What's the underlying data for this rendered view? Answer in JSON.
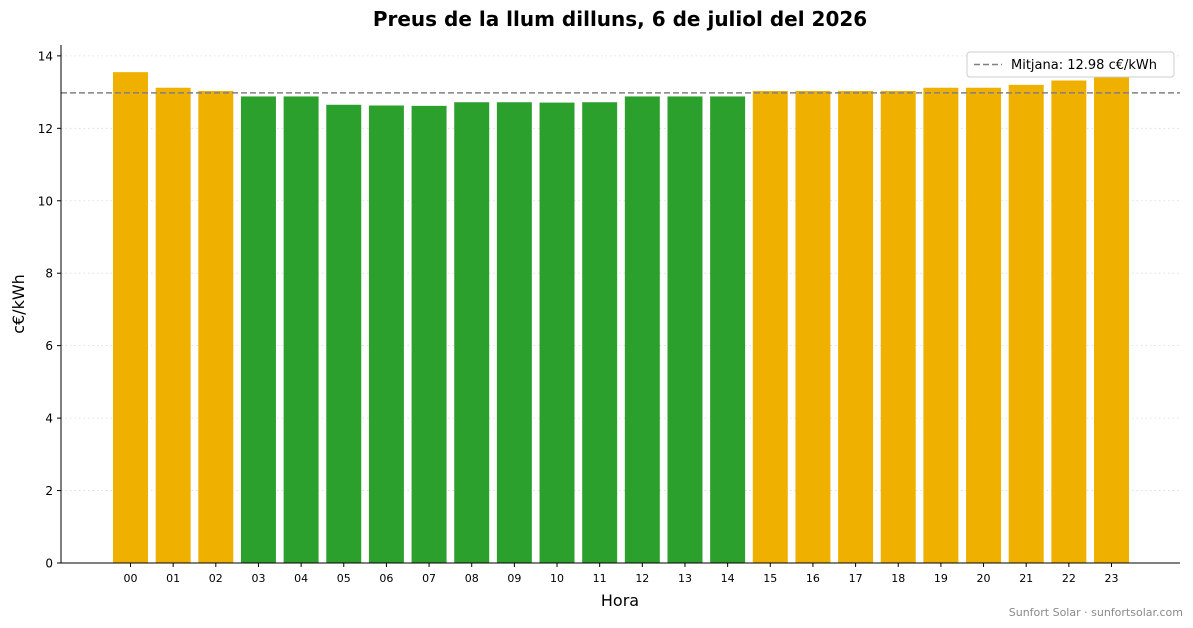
{
  "chart_data": {
    "type": "bar",
    "title": "Preus de la llum dilluns, 6 de juliol del 2026",
    "xlabel": "Hora",
    "ylabel": "c€/kWh",
    "ylim": [
      0,
      14.3
    ],
    "yticks": [
      0,
      2,
      4,
      6,
      8,
      10,
      12,
      14
    ],
    "grid": "horizontal dotted",
    "legend_position": "top-right",
    "categories": [
      "00",
      "01",
      "02",
      "03",
      "04",
      "05",
      "06",
      "07",
      "08",
      "09",
      "10",
      "11",
      "12",
      "13",
      "14",
      "15",
      "16",
      "17",
      "18",
      "19",
      "20",
      "21",
      "22",
      "23"
    ],
    "values": [
      13.55,
      13.12,
      13.03,
      12.88,
      12.88,
      12.65,
      12.63,
      12.62,
      12.72,
      12.72,
      12.71,
      12.72,
      12.88,
      12.88,
      12.88,
      13.03,
      13.03,
      13.03,
      13.03,
      13.12,
      13.12,
      13.2,
      13.32,
      13.42
    ],
    "bar_colors": [
      "#f0b000",
      "#f0b000",
      "#f0b000",
      "#2ca02c",
      "#2ca02c",
      "#2ca02c",
      "#2ca02c",
      "#2ca02c",
      "#2ca02c",
      "#2ca02c",
      "#2ca02c",
      "#2ca02c",
      "#2ca02c",
      "#2ca02c",
      "#2ca02c",
      "#f0b000",
      "#f0b000",
      "#f0b000",
      "#f0b000",
      "#f0b000",
      "#f0b000",
      "#f0b000",
      "#f0b000",
      "#f0b000"
    ],
    "reference_line": {
      "value": 12.98,
      "label": "Mitjana: 12.98 c€/kWh",
      "color": "#808080",
      "style": "dashed"
    }
  },
  "footer": {
    "watermark": "Sunfort Solar · sunfortsolar.com"
  }
}
